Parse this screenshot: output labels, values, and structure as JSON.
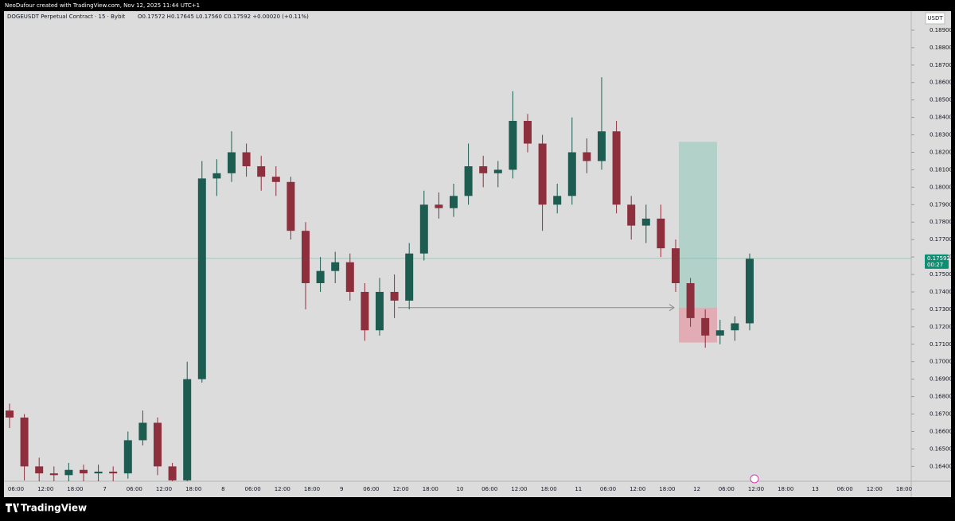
{
  "chart_data": {
    "type": "candlestick",
    "credit": "NeoDufour created with TradingView.com, Nov 12, 2025 11:44 UTC+1",
    "symbol": "DOGEUSDT Perpetual Contract · 15 · Bybit",
    "ohlc_legend": "O0.17572 H0.17645 L0.17560 C0.17592 +0.00020 (+0.11%)",
    "currency": "USDT",
    "brand": "TradingView",
    "up_color": "#1d5c51",
    "down_color": "#8e2f3d",
    "open": [
      0.1672,
      0.1668,
      0.164,
      0.1636,
      0.1635,
      0.1638,
      0.1636,
      0.1637,
      0.1636,
      0.1655,
      0.1665,
      0.164,
      0.1632,
      0.169,
      0.1805,
      0.1808,
      0.182,
      0.1812,
      0.1806,
      0.1803,
      0.1775,
      0.1745,
      0.1752,
      0.1757,
      0.174,
      0.1718,
      0.174,
      0.1735,
      0.1762,
      0.179,
      0.1788,
      0.1795,
      0.1812,
      0.1808,
      0.181,
      0.1838,
      0.1825,
      0.179,
      0.1795,
      0.182,
      0.1815,
      0.1832,
      0.179,
      0.1778,
      0.1782,
      0.1765,
      0.1745,
      0.1725,
      0.1715,
      0.1718,
      0.1722
    ],
    "high": [
      0.1676,
      0.167,
      0.1645,
      0.164,
      0.1642,
      0.1641,
      0.1641,
      0.164,
      0.166,
      0.1672,
      0.1668,
      0.1642,
      0.17,
      0.1815,
      0.1816,
      0.1832,
      0.1825,
      0.1818,
      0.1812,
      0.1806,
      0.178,
      0.176,
      0.1763,
      0.1762,
      0.1745,
      0.1748,
      0.175,
      0.1768,
      0.1798,
      0.1797,
      0.1802,
      0.1825,
      0.1818,
      0.1815,
      0.1855,
      0.1842,
      0.183,
      0.1802,
      0.184,
      0.1828,
      0.1863,
      0.1838,
      0.1795,
      0.179,
      0.179,
      0.177,
      0.1748,
      0.173,
      0.1724,
      0.1726,
      0.1762
    ],
    "low": [
      0.1662,
      0.1632,
      0.163,
      0.1628,
      0.163,
      0.163,
      0.1631,
      0.163,
      0.1633,
      0.1652,
      0.1635,
      0.1625,
      0.163,
      0.1688,
      0.1795,
      0.1803,
      0.1806,
      0.1798,
      0.1795,
      0.177,
      0.173,
      0.174,
      0.1745,
      0.1735,
      0.1712,
      0.1715,
      0.1725,
      0.173,
      0.1758,
      0.1782,
      0.1783,
      0.179,
      0.18,
      0.18,
      0.1805,
      0.182,
      0.1775,
      0.1785,
      0.179,
      0.1808,
      0.181,
      0.1785,
      0.177,
      0.1768,
      0.176,
      0.174,
      0.172,
      0.1708,
      0.171,
      0.1712,
      0.1718
    ],
    "close": [
      0.1668,
      0.164,
      0.1636,
      0.1635,
      0.1638,
      0.1636,
      0.1637,
      0.1636,
      0.1655,
      0.1665,
      0.164,
      0.1632,
      0.169,
      0.1805,
      0.1808,
      0.182,
      0.1812,
      0.1806,
      0.1803,
      0.1775,
      0.1745,
      0.1752,
      0.1757,
      0.174,
      0.1718,
      0.174,
      0.1735,
      0.1762,
      0.179,
      0.1788,
      0.1795,
      0.1812,
      0.1808,
      0.181,
      0.1838,
      0.1825,
      0.179,
      0.1795,
      0.182,
      0.1815,
      0.1832,
      0.179,
      0.1778,
      0.1782,
      0.1765,
      0.1745,
      0.1725,
      0.1715,
      0.1718,
      0.1722,
      0.1759
    ],
    "position": {
      "target": 0.1826,
      "entry": 0.1731,
      "stop": 0.1711,
      "target_color": "#a9cfc6",
      "stop_color": "#e2a3ab"
    },
    "last_price": {
      "value": 0.17592,
      "label": "0.17592",
      "countdown": "00:27",
      "color": "#0d8f73"
    },
    "ylim": [
      0.16315,
      0.19009
    ],
    "yticks": [
      {
        "value": 0.189,
        "label": "0.18900"
      },
      {
        "value": 0.188,
        "label": "0.18800"
      },
      {
        "value": 0.187,
        "label": "0.18700"
      },
      {
        "value": 0.186,
        "label": "0.18600"
      },
      {
        "value": 0.185,
        "label": "0.18500"
      },
      {
        "value": 0.184,
        "label": "0.18400"
      },
      {
        "value": 0.183,
        "label": "0.18300"
      },
      {
        "value": 0.182,
        "label": "0.18200"
      },
      {
        "value": 0.181,
        "label": "0.18100"
      },
      {
        "value": 0.18,
        "label": "0.18000"
      },
      {
        "value": 0.179,
        "label": "0.17900"
      },
      {
        "value": 0.178,
        "label": "0.17800"
      },
      {
        "value": 0.177,
        "label": "0.17700"
      },
      {
        "value": 0.176,
        "label": "0.17600"
      },
      {
        "value": 0.175,
        "label": "0.17500"
      },
      {
        "value": 0.174,
        "label": "0.17400"
      },
      {
        "value": 0.173,
        "label": "0.17300"
      },
      {
        "value": 0.172,
        "label": "0.17200"
      },
      {
        "value": 0.171,
        "label": "0.17100"
      },
      {
        "value": 0.17,
        "label": "0.17000"
      },
      {
        "value": 0.169,
        "label": "0.16900"
      },
      {
        "value": 0.168,
        "label": "0.16800"
      },
      {
        "value": 0.167,
        "label": "0.16700"
      },
      {
        "value": 0.166,
        "label": "0.16600"
      },
      {
        "value": 0.165,
        "label": "0.16500"
      },
      {
        "value": 0.164,
        "label": "0.16400"
      }
    ],
    "xticks": [
      "06:00",
      "12:00",
      "18:00",
      "7",
      "06:00",
      "12:00",
      "18:00",
      "8",
      "06:00",
      "12:00",
      "18:00",
      "9",
      "06:00",
      "12:00",
      "18:00",
      "10",
      "06:00",
      "12:00",
      "18:00",
      "11",
      "06:00",
      "12:00",
      "18:00",
      "12",
      "06:00",
      "12:00",
      "18:00",
      "13",
      "06:00",
      "12:00",
      "18:00"
    ]
  }
}
